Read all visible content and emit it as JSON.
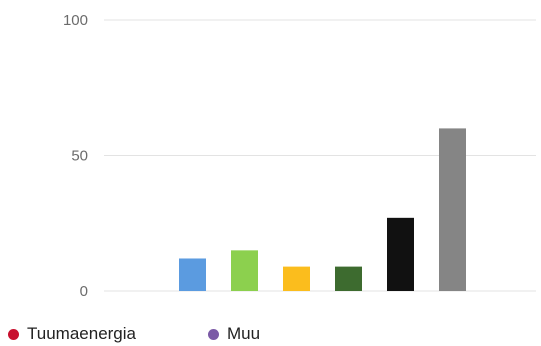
{
  "chart_data": {
    "type": "bar",
    "title": "",
    "xlabel": "",
    "ylabel": "",
    "ylim": [
      0,
      100
    ],
    "yticks": [
      0,
      50,
      100
    ],
    "grid": true,
    "legend_position": "bottom-left",
    "bars": [
      {
        "value": 12,
        "color": "#5b9be0"
      },
      {
        "value": 15,
        "color": "#8cd04e"
      },
      {
        "value": 9,
        "color": "#fbbd1d"
      },
      {
        "value": 9,
        "color": "#3d6b2f"
      },
      {
        "value": 27,
        "color": "#111111"
      },
      {
        "value": 60,
        "color": "#858585"
      }
    ],
    "legend": [
      {
        "label": "Tuumaenergia",
        "color": "#c8102e"
      },
      {
        "label": "Muu",
        "color": "#7b5aa6"
      }
    ]
  }
}
